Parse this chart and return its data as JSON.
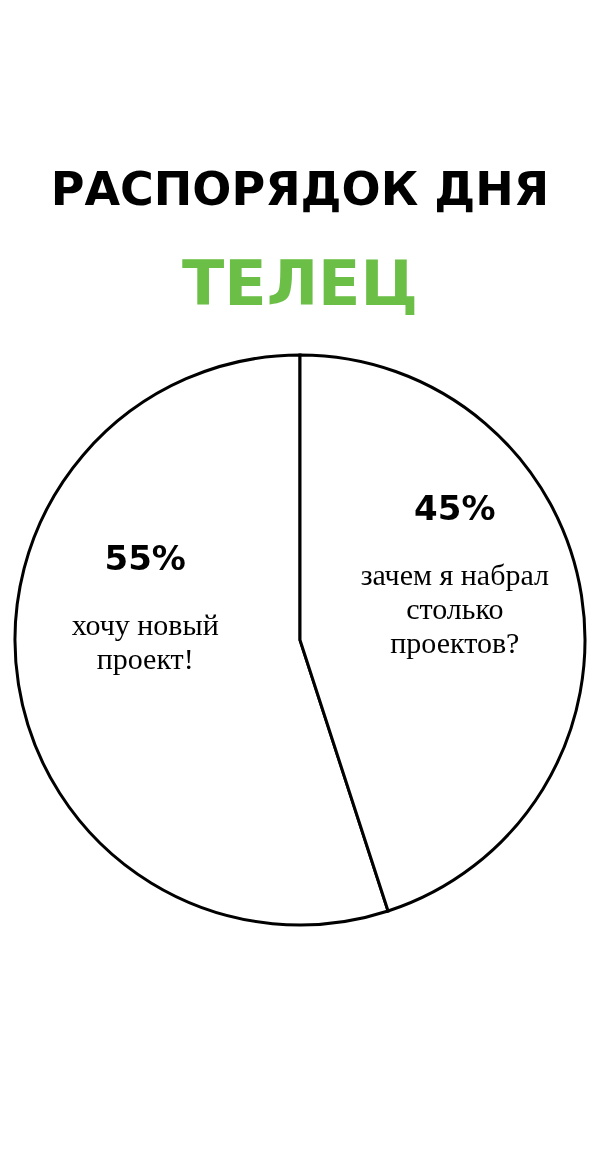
{
  "chart_data": {
    "type": "pie",
    "title": "РАСПОРЯДОК ДНЯ",
    "subtitle": "ТЕЛЕЦ",
    "categories": [
      "хочу новый проект!",
      "зачем я набрал столько проектов?"
    ],
    "values": [
      55,
      45
    ],
    "colors": [
      "#ffffff",
      "#ffffff"
    ],
    "value_labels": [
      "55%",
      "45%"
    ]
  }
}
